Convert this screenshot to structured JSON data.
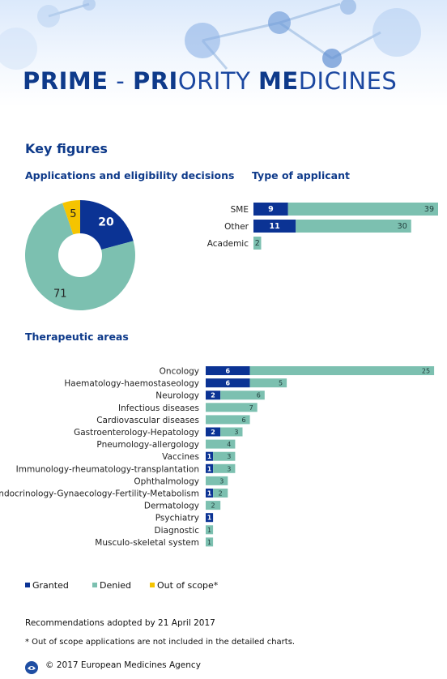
{
  "banner": {
    "title_parts": [
      {
        "text": "PRIME",
        "style": "bold"
      },
      {
        "text": " - ",
        "style": "light"
      },
      {
        "text": "PRI",
        "style": "bold"
      },
      {
        "text": "ORITY ",
        "style": "light"
      },
      {
        "text": "ME",
        "style": "bold"
      },
      {
        "text": "DICINES",
        "style": "light"
      }
    ]
  },
  "key_figures_title": "Key figures",
  "applications_title": "Applications and eligibility decisions",
  "applicant_title": "Type of applicant",
  "therapeutic_title": "Therapeutic areas",
  "colors": {
    "granted": "#0b3394",
    "denied": "#7cc0b0",
    "out_of_scope": "#f5c400",
    "heading": "#0e3a8a"
  },
  "legend": [
    {
      "label": "Granted",
      "color": "#0b3394"
    },
    {
      "label": "Denied",
      "color": "#7cc0b0"
    },
    {
      "label": "Out of scope*",
      "color": "#f5c400"
    }
  ],
  "chart_data": [
    {
      "id": "applications",
      "type": "pie",
      "slices": [
        {
          "label": "Granted",
          "value": 20,
          "color": "#0b3394"
        },
        {
          "label": "Denied",
          "value": 71,
          "color": "#7cc0b0"
        },
        {
          "label": "Out of scope*",
          "value": 5,
          "color": "#f5c400"
        }
      ]
    },
    {
      "id": "type_of_applicant",
      "type": "bar",
      "orientation": "horizontal",
      "stacked": true,
      "categories": [
        "SME",
        "Other",
        "Academic"
      ],
      "series": [
        {
          "name": "Granted",
          "values": [
            9,
            11,
            null
          ]
        },
        {
          "name": "Denied",
          "values": [
            39,
            30,
            2
          ]
        }
      ]
    },
    {
      "id": "therapeutic_areas",
      "type": "bar",
      "orientation": "horizontal",
      "stacked": true,
      "categories": [
        "Oncology",
        "Haematology-haemostaseology",
        "Neurology",
        "Infectious diseases",
        "Cardiovascular diseases",
        "Gastroenterology-Hepatology",
        "Pneumology-allergology",
        "Vaccines",
        "Immunology-rheumatology-transplantation",
        "Ophthalmology",
        "Endocrinology-Gynaecology-Fertility-Metabolism",
        "Dermatology",
        "Psychiatry",
        "Diagnostic",
        "Musculo-skeletal system"
      ],
      "series": [
        {
          "name": "Granted",
          "values": [
            6,
            6,
            2,
            null,
            null,
            2,
            null,
            1,
            1,
            null,
            1,
            null,
            1,
            null,
            null
          ]
        },
        {
          "name": "Denied",
          "values": [
            25,
            5,
            6,
            7,
            6,
            3,
            4,
            3,
            3,
            3,
            2,
            2,
            null,
            1,
            1
          ]
        }
      ]
    }
  ],
  "footnote_date": "Recommendations adopted by 21 April 2017",
  "footnote_scope": "* Out of scope applications are not included in the detailed charts.",
  "copyright": "© 2017 European Medicines Agency"
}
